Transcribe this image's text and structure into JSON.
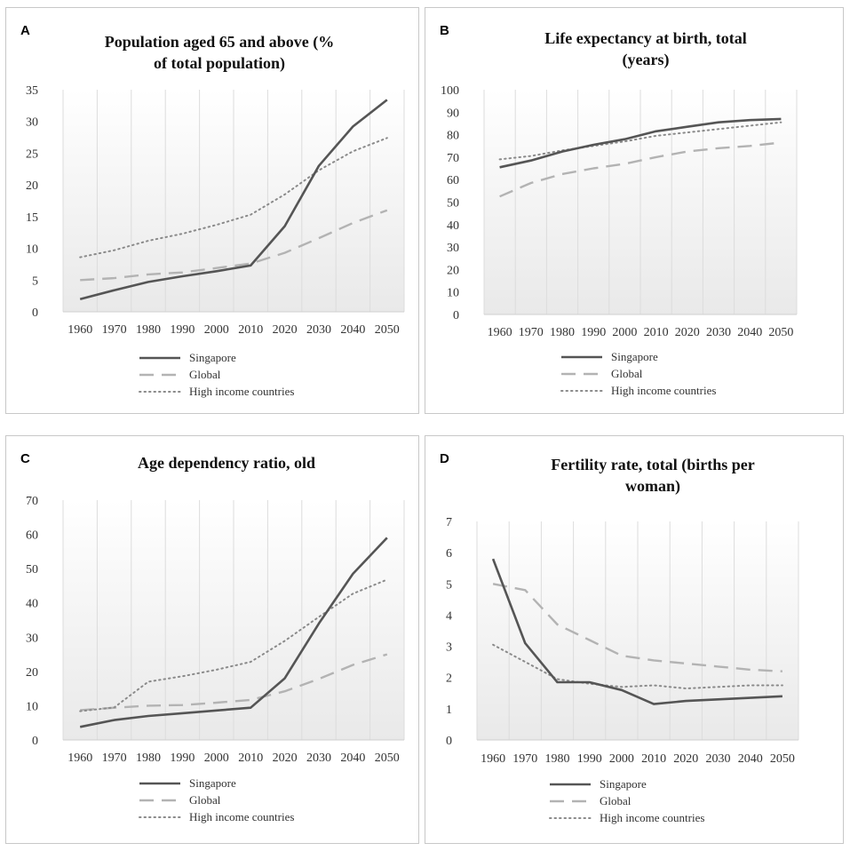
{
  "chart_data": [
    {
      "type": "line",
      "panel_label": "A",
      "title_lines": [
        "Population aged 65 and above (%",
        "of total population)"
      ],
      "categories": [
        "1960",
        "1970",
        "1980",
        "1990",
        "2000",
        "2010",
        "2020",
        "2030",
        "2040",
        "2050"
      ],
      "ylim": [
        0,
        35
      ],
      "yticks": [
        0,
        5,
        10,
        15,
        20,
        25,
        30,
        35
      ],
      "series": [
        {
          "name": "Singapore",
          "style": "solid",
          "values": [
            2.0,
            3.4,
            4.7,
            5.6,
            6.4,
            7.3,
            13.5,
            23.0,
            29.2,
            33.4
          ]
        },
        {
          "name": "Global",
          "style": "dashed",
          "values": [
            5.0,
            5.3,
            5.9,
            6.2,
            6.9,
            7.6,
            9.3,
            11.6,
            14.0,
            16.0
          ]
        },
        {
          "name": "High income countries",
          "style": "dotted",
          "values": [
            8.6,
            9.7,
            11.2,
            12.3,
            13.7,
            15.3,
            18.5,
            22.3,
            25.3,
            27.4
          ]
        }
      ]
    },
    {
      "type": "line",
      "panel_label": "B",
      "title_lines": [
        "Life expectancy at birth, total",
        "(years)"
      ],
      "categories": [
        "1960",
        "1970",
        "1980",
        "1990",
        "2000",
        "2010",
        "2020",
        "2030",
        "2040",
        "2050"
      ],
      "ylim": [
        0,
        100
      ],
      "yticks": [
        0,
        10,
        20,
        30,
        40,
        50,
        60,
        70,
        80,
        90,
        100
      ],
      "series": [
        {
          "name": "Singapore",
          "style": "solid",
          "values": [
            65.5,
            68.5,
            72.5,
            75.5,
            78.0,
            81.5,
            83.5,
            85.5,
            86.5,
            87.0
          ]
        },
        {
          "name": "Global",
          "style": "dashed",
          "values": [
            52.5,
            58.5,
            62.5,
            65.0,
            67.0,
            70.0,
            72.5,
            74.0,
            75.0,
            76.5
          ]
        },
        {
          "name": "High income countries",
          "style": "dotted",
          "values": [
            69.0,
            70.5,
            73.0,
            75.0,
            77.0,
            79.5,
            81.0,
            82.5,
            84.0,
            85.5
          ]
        }
      ]
    },
    {
      "type": "line",
      "panel_label": "C",
      "title_lines": [
        "Age dependency ratio, old"
      ],
      "categories": [
        "1960",
        "1970",
        "1980",
        "1990",
        "2000",
        "2010",
        "2020",
        "2030",
        "2040",
        "2050"
      ],
      "ylim": [
        0,
        70
      ],
      "yticks": [
        0,
        10,
        20,
        30,
        40,
        50,
        60,
        70
      ],
      "series": [
        {
          "name": "Singapore",
          "style": "solid",
          "values": [
            3.8,
            5.8,
            7.0,
            7.8,
            8.6,
            9.4,
            18.0,
            34.0,
            48.5,
            59.0
          ]
        },
        {
          "name": "Global",
          "style": "dashed",
          "values": [
            8.7,
            9.4,
            10.0,
            10.2,
            10.9,
            11.7,
            14.2,
            17.8,
            21.9,
            25.0
          ]
        },
        {
          "name": "High income countries",
          "style": "dotted",
          "values": [
            8.4,
            9.5,
            17.0,
            18.6,
            20.5,
            22.8,
            28.9,
            35.9,
            42.7,
            46.8
          ]
        }
      ]
    },
    {
      "type": "line",
      "panel_label": "D",
      "title_lines": [
        "Fertility rate, total (births per",
        "woman)"
      ],
      "categories": [
        "1960",
        "1970",
        "1980",
        "1990",
        "2000",
        "2010",
        "2020",
        "2030",
        "2040",
        "2050"
      ],
      "ylim": [
        0,
        7
      ],
      "yticks": [
        0,
        1,
        2,
        3,
        4,
        5,
        6,
        7
      ],
      "series": [
        {
          "name": "Singapore",
          "style": "solid",
          "values": [
            5.8,
            3.1,
            1.85,
            1.85,
            1.6,
            1.15,
            1.25,
            1.3,
            1.35,
            1.4
          ]
        },
        {
          "name": "Global",
          "style": "dashed",
          "values": [
            5.0,
            4.8,
            3.7,
            3.2,
            2.7,
            2.55,
            2.45,
            2.35,
            2.25,
            2.2
          ]
        },
        {
          "name": "High income countries",
          "style": "dotted",
          "values": [
            3.05,
            2.5,
            1.95,
            1.8,
            1.7,
            1.75,
            1.65,
            1.7,
            1.75,
            1.75
          ]
        }
      ]
    }
  ]
}
